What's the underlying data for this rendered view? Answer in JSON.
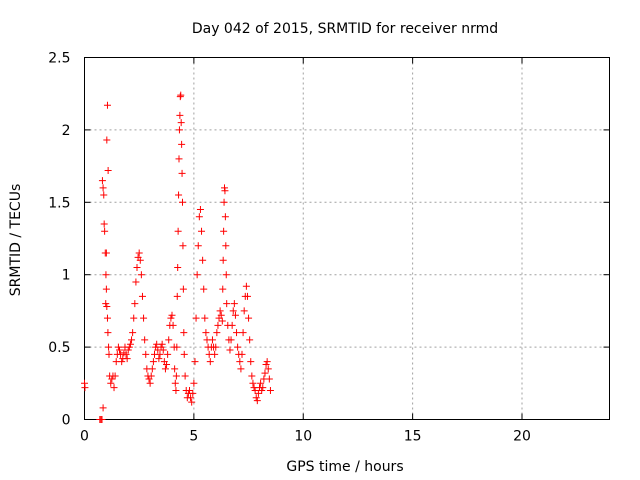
{
  "chart_data": {
    "type": "scatter",
    "title": "Day 042 of 2015, SRMTID for receiver nrmd",
    "xlabel": "GPS time / hours",
    "ylabel": "SRMTID / TECUs",
    "xlim": [
      0,
      24
    ],
    "ylim": [
      0,
      2.5
    ],
    "xticks": [
      0,
      5,
      10,
      15,
      20
    ],
    "yticks": [
      0,
      0.5,
      1,
      1.5,
      2,
      2.5
    ],
    "xtick_labels": [
      "0",
      "5",
      "10",
      "15",
      "20"
    ],
    "ytick_labels": [
      "0",
      "0.5",
      "1",
      "1.5",
      "2",
      "2.5"
    ],
    "grid": true,
    "marker": "plus",
    "color": "#ff0000",
    "points": [
      [
        0.0,
        0.25
      ],
      [
        0.02,
        0.22
      ],
      [
        0.7,
        0.0
      ],
      [
        0.75,
        0.0
      ],
      [
        0.8,
        0.0
      ],
      [
        0.85,
        0.08
      ],
      [
        0.82,
        1.65
      ],
      [
        0.85,
        1.6
      ],
      [
        0.88,
        1.55
      ],
      [
        0.9,
        1.35
      ],
      [
        0.92,
        1.3
      ],
      [
        0.95,
        1.15
      ],
      [
        0.98,
        1.0
      ],
      [
        1.0,
        0.9
      ],
      [
        1.02,
        0.78
      ],
      [
        1.05,
        0.7
      ],
      [
        1.07,
        0.6
      ],
      [
        1.1,
        0.5
      ],
      [
        1.12,
        0.45
      ],
      [
        1.02,
        1.93
      ],
      [
        1.05,
        2.17
      ],
      [
        1.08,
        1.72
      ],
      [
        1.0,
        1.15
      ],
      [
        0.97,
        0.8
      ],
      [
        1.15,
        0.3
      ],
      [
        1.2,
        0.25
      ],
      [
        1.25,
        0.28
      ],
      [
        1.3,
        0.3
      ],
      [
        1.35,
        0.22
      ],
      [
        1.4,
        0.3
      ],
      [
        1.45,
        0.4
      ],
      [
        1.5,
        0.45
      ],
      [
        1.55,
        0.5
      ],
      [
        1.6,
        0.48
      ],
      [
        1.65,
        0.45
      ],
      [
        1.7,
        0.4
      ],
      [
        1.75,
        0.42
      ],
      [
        1.8,
        0.46
      ],
      [
        1.85,
        0.5
      ],
      [
        1.9,
        0.45
      ],
      [
        1.95,
        0.42
      ],
      [
        2.0,
        0.48
      ],
      [
        2.05,
        0.5
      ],
      [
        2.1,
        0.52
      ],
      [
        2.15,
        0.55
      ],
      [
        2.2,
        0.6
      ],
      [
        2.25,
        0.7
      ],
      [
        2.3,
        0.8
      ],
      [
        2.35,
        0.95
      ],
      [
        2.4,
        1.05
      ],
      [
        2.45,
        1.12
      ],
      [
        2.5,
        1.15
      ],
      [
        2.55,
        1.1
      ],
      [
        2.6,
        1.0
      ],
      [
        2.65,
        0.85
      ],
      [
        2.7,
        0.7
      ],
      [
        2.75,
        0.55
      ],
      [
        2.8,
        0.45
      ],
      [
        2.85,
        0.35
      ],
      [
        2.9,
        0.3
      ],
      [
        2.95,
        0.28
      ],
      [
        3.0,
        0.25
      ],
      [
        3.05,
        0.3
      ],
      [
        3.1,
        0.35
      ],
      [
        3.15,
        0.4
      ],
      [
        3.2,
        0.45
      ],
      [
        3.25,
        0.5
      ],
      [
        3.3,
        0.52
      ],
      [
        3.35,
        0.48
      ],
      [
        3.4,
        0.42
      ],
      [
        3.45,
        0.45
      ],
      [
        3.5,
        0.5
      ],
      [
        3.55,
        0.52
      ],
      [
        3.6,
        0.48
      ],
      [
        3.65,
        0.4
      ],
      [
        3.7,
        0.35
      ],
      [
        3.75,
        0.38
      ],
      [
        3.8,
        0.45
      ],
      [
        3.85,
        0.55
      ],
      [
        3.9,
        0.65
      ],
      [
        3.95,
        0.7
      ],
      [
        4.0,
        0.72
      ],
      [
        4.05,
        0.65
      ],
      [
        4.1,
        0.5
      ],
      [
        4.12,
        0.35
      ],
      [
        4.15,
        0.25
      ],
      [
        4.18,
        0.2
      ],
      [
        4.2,
        0.3
      ],
      [
        4.22,
        0.5
      ],
      [
        4.24,
        0.85
      ],
      [
        4.26,
        1.05
      ],
      [
        4.28,
        1.3
      ],
      [
        4.3,
        1.55
      ],
      [
        4.32,
        1.8
      ],
      [
        4.34,
        2.0
      ],
      [
        4.36,
        2.1
      ],
      [
        4.38,
        2.23
      ],
      [
        4.4,
        2.24
      ],
      [
        4.42,
        2.05
      ],
      [
        4.44,
        1.9
      ],
      [
        4.46,
        1.7
      ],
      [
        4.48,
        1.5
      ],
      [
        4.5,
        1.2
      ],
      [
        4.52,
        0.9
      ],
      [
        4.54,
        0.6
      ],
      [
        4.56,
        0.45
      ],
      [
        4.6,
        0.3
      ],
      [
        4.65,
        0.2
      ],
      [
        4.7,
        0.15
      ],
      [
        4.75,
        0.18
      ],
      [
        4.8,
        0.2
      ],
      [
        4.85,
        0.15
      ],
      [
        4.9,
        0.12
      ],
      [
        4.95,
        0.18
      ],
      [
        5.0,
        0.25
      ],
      [
        5.05,
        0.4
      ],
      [
        5.1,
        0.7
      ],
      [
        5.15,
        1.0
      ],
      [
        5.2,
        1.2
      ],
      [
        5.25,
        1.4
      ],
      [
        5.3,
        1.45
      ],
      [
        5.35,
        1.3
      ],
      [
        5.4,
        1.1
      ],
      [
        5.45,
        0.9
      ],
      [
        5.5,
        0.7
      ],
      [
        5.55,
        0.6
      ],
      [
        5.6,
        0.55
      ],
      [
        5.65,
        0.5
      ],
      [
        5.7,
        0.45
      ],
      [
        5.75,
        0.4
      ],
      [
        5.8,
        0.5
      ],
      [
        5.85,
        0.55
      ],
      [
        5.9,
        0.5
      ],
      [
        5.95,
        0.45
      ],
      [
        6.0,
        0.5
      ],
      [
        6.05,
        0.6
      ],
      [
        6.1,
        0.65
      ],
      [
        6.15,
        0.7
      ],
      [
        6.2,
        0.75
      ],
      [
        6.25,
        0.72
      ],
      [
        6.3,
        0.68
      ],
      [
        6.32,
        0.9
      ],
      [
        6.34,
        1.1
      ],
      [
        6.36,
        1.3
      ],
      [
        6.38,
        1.5
      ],
      [
        6.4,
        1.6
      ],
      [
        6.42,
        1.58
      ],
      [
        6.44,
        1.4
      ],
      [
        6.46,
        1.2
      ],
      [
        6.48,
        1.0
      ],
      [
        6.5,
        0.8
      ],
      [
        6.55,
        0.65
      ],
      [
        6.6,
        0.55
      ],
      [
        6.65,
        0.48
      ],
      [
        6.7,
        0.55
      ],
      [
        6.75,
        0.65
      ],
      [
        6.8,
        0.75
      ],
      [
        6.85,
        0.8
      ],
      [
        6.9,
        0.72
      ],
      [
        6.95,
        0.6
      ],
      [
        7.0,
        0.5
      ],
      [
        7.05,
        0.45
      ],
      [
        7.1,
        0.4
      ],
      [
        7.15,
        0.35
      ],
      [
        7.2,
        0.45
      ],
      [
        7.25,
        0.6
      ],
      [
        7.3,
        0.75
      ],
      [
        7.35,
        0.85
      ],
      [
        7.4,
        0.92
      ],
      [
        7.45,
        0.85
      ],
      [
        7.5,
        0.7
      ],
      [
        7.55,
        0.55
      ],
      [
        7.6,
        0.4
      ],
      [
        7.65,
        0.3
      ],
      [
        7.7,
        0.25
      ],
      [
        7.75,
        0.22
      ],
      [
        7.8,
        0.2
      ],
      [
        7.85,
        0.15
      ],
      [
        7.9,
        0.13
      ],
      [
        7.95,
        0.18
      ],
      [
        8.0,
        0.22
      ],
      [
        8.05,
        0.25
      ],
      [
        8.1,
        0.2
      ],
      [
        8.15,
        0.22
      ],
      [
        8.2,
        0.28
      ],
      [
        8.25,
        0.32
      ],
      [
        8.3,
        0.38
      ],
      [
        8.35,
        0.4
      ],
      [
        8.4,
        0.35
      ],
      [
        8.45,
        0.28
      ],
      [
        8.5,
        0.2
      ]
    ]
  }
}
